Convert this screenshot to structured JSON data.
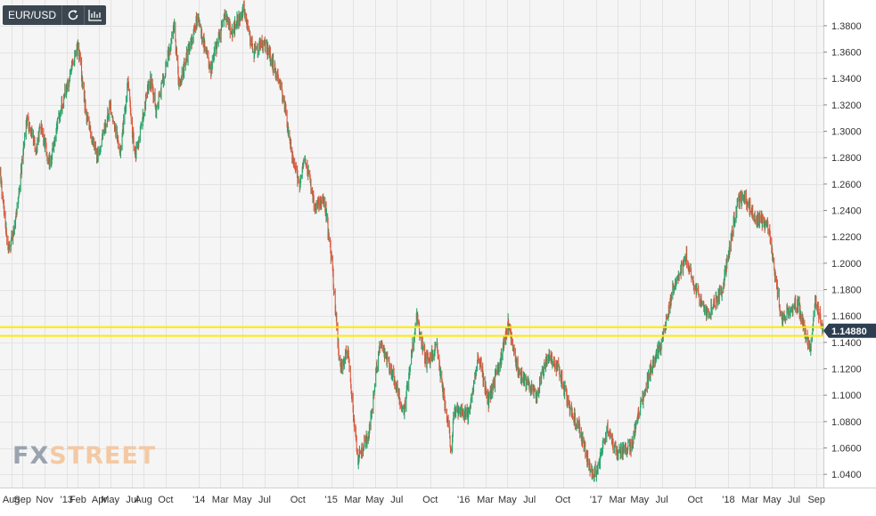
{
  "toolbar": {
    "symbol": "EUR/USD",
    "buttons": [
      {
        "name": "refresh",
        "icon": "refresh-icon"
      },
      {
        "name": "chart-type",
        "icon": "bar-chart-icon"
      }
    ]
  },
  "watermark": {
    "part1": "FX",
    "part2": "STREET"
  },
  "colors": {
    "up": "#26a269",
    "down": "#d9573b",
    "grid": "#e3e3e3",
    "plot_bg": "#f5f5f5",
    "support_line": "#ffea00",
    "price_label_bg": "#2c3e50",
    "axis_text": "#333333"
  },
  "chart_data": {
    "type": "candlestick",
    "title": "EUR/USD",
    "xlabel": "",
    "ylabel": "",
    "x_range": [
      "2012-07-01",
      "2018-09-20"
    ],
    "ylim": [
      1.03,
      1.3995
    ],
    "y_ticks": [
      1.04,
      1.06,
      1.08,
      1.1,
      1.12,
      1.14,
      1.16,
      1.18,
      1.2,
      1.22,
      1.24,
      1.26,
      1.28,
      1.3,
      1.32,
      1.34,
      1.36,
      1.38
    ],
    "y_tick_labels": [
      "1.0400",
      "1.0600",
      "1.0800",
      "1.1000",
      "1.1200",
      "1.1400",
      "1.1600",
      "1.1800",
      "1.2000",
      "1.2200",
      "1.2400",
      "1.2600",
      "1.2800",
      "1.3000",
      "1.3200",
      "1.3400",
      "1.3600",
      "1.3800"
    ],
    "x_ticks": [
      {
        "date": "2012-08-01",
        "label": "Aug"
      },
      {
        "date": "2012-09-01",
        "label": "Sep"
      },
      {
        "date": "2012-11-01",
        "label": "Nov"
      },
      {
        "date": "2013-01-01",
        "label": "'13"
      },
      {
        "date": "2013-02-01",
        "label": "Feb"
      },
      {
        "date": "2013-04-01",
        "label": "Apr"
      },
      {
        "date": "2013-05-01",
        "label": "May"
      },
      {
        "date": "2013-07-01",
        "label": "Jul"
      },
      {
        "date": "2013-08-01",
        "label": "Aug"
      },
      {
        "date": "2013-10-01",
        "label": "Oct"
      },
      {
        "date": "2014-01-01",
        "label": "'14"
      },
      {
        "date": "2014-03-01",
        "label": "Mar"
      },
      {
        "date": "2014-05-01",
        "label": "May"
      },
      {
        "date": "2014-07-01",
        "label": "Jul"
      },
      {
        "date": "2014-10-01",
        "label": "Oct"
      },
      {
        "date": "2015-01-01",
        "label": "'15"
      },
      {
        "date": "2015-03-01",
        "label": "Mar"
      },
      {
        "date": "2015-05-01",
        "label": "May"
      },
      {
        "date": "2015-07-01",
        "label": "Jul"
      },
      {
        "date": "2015-10-01",
        "label": "Oct"
      },
      {
        "date": "2016-01-01",
        "label": "'16"
      },
      {
        "date": "2016-03-01",
        "label": "Mar"
      },
      {
        "date": "2016-05-01",
        "label": "May"
      },
      {
        "date": "2016-07-01",
        "label": "Jul"
      },
      {
        "date": "2016-10-01",
        "label": "Oct"
      },
      {
        "date": "2017-01-01",
        "label": "'17"
      },
      {
        "date": "2017-03-01",
        "label": "Mar"
      },
      {
        "date": "2017-05-01",
        "label": "May"
      },
      {
        "date": "2017-07-01",
        "label": "Jul"
      },
      {
        "date": "2017-10-01",
        "label": "Oct"
      },
      {
        "date": "2018-01-01",
        "label": "'18"
      },
      {
        "date": "2018-03-01",
        "label": "Mar"
      },
      {
        "date": "2018-05-01",
        "label": "May"
      },
      {
        "date": "2018-07-01",
        "label": "Jul"
      },
      {
        "date": "2018-09-01",
        "label": "Sep"
      }
    ],
    "close_path": [
      {
        "date": "2012-07-01",
        "price": 1.268
      },
      {
        "date": "2012-07-24",
        "price": 1.21
      },
      {
        "date": "2012-08-10",
        "price": 1.225
      },
      {
        "date": "2012-09-14",
        "price": 1.31
      },
      {
        "date": "2012-10-10",
        "price": 1.285
      },
      {
        "date": "2012-10-20",
        "price": 1.305
      },
      {
        "date": "2012-11-15",
        "price": 1.275
      },
      {
        "date": "2012-12-18",
        "price": 1.32
      },
      {
        "date": "2013-02-01",
        "price": 1.365
      },
      {
        "date": "2013-02-25",
        "price": 1.31
      },
      {
        "date": "2013-03-27",
        "price": 1.28
      },
      {
        "date": "2013-05-01",
        "price": 1.32
      },
      {
        "date": "2013-05-28",
        "price": 1.285
      },
      {
        "date": "2013-06-19",
        "price": 1.335
      },
      {
        "date": "2013-07-09",
        "price": 1.28
      },
      {
        "date": "2013-08-20",
        "price": 1.34
      },
      {
        "date": "2013-09-05",
        "price": 1.315
      },
      {
        "date": "2013-10-25",
        "price": 1.38
      },
      {
        "date": "2013-11-07",
        "price": 1.335
      },
      {
        "date": "2013-12-27",
        "price": 1.385
      },
      {
        "date": "2014-02-03",
        "price": 1.348
      },
      {
        "date": "2014-03-13",
        "price": 1.39
      },
      {
        "date": "2014-04-01",
        "price": 1.375
      },
      {
        "date": "2014-05-06",
        "price": 1.393
      },
      {
        "date": "2014-05-31",
        "price": 1.36
      },
      {
        "date": "2014-06-30",
        "price": 1.368
      },
      {
        "date": "2014-08-15",
        "price": 1.336
      },
      {
        "date": "2014-09-10",
        "price": 1.29
      },
      {
        "date": "2014-10-05",
        "price": 1.26
      },
      {
        "date": "2014-10-20",
        "price": 1.28
      },
      {
        "date": "2014-11-15",
        "price": 1.245
      },
      {
        "date": "2014-12-15",
        "price": 1.245
      },
      {
        "date": "2015-01-06",
        "price": 1.19
      },
      {
        "date": "2015-01-25",
        "price": 1.12
      },
      {
        "date": "2015-02-15",
        "price": 1.135
      },
      {
        "date": "2015-03-15",
        "price": 1.05
      },
      {
        "date": "2015-04-15",
        "price": 1.07
      },
      {
        "date": "2015-05-15",
        "price": 1.14
      },
      {
        "date": "2015-06-15",
        "price": 1.12
      },
      {
        "date": "2015-07-20",
        "price": 1.085
      },
      {
        "date": "2015-08-24",
        "price": 1.16
      },
      {
        "date": "2015-09-20",
        "price": 1.125
      },
      {
        "date": "2015-10-20",
        "price": 1.135
      },
      {
        "date": "2015-11-30",
        "price": 1.056
      },
      {
        "date": "2015-12-05",
        "price": 1.09
      },
      {
        "date": "2016-01-15",
        "price": 1.085
      },
      {
        "date": "2016-02-11",
        "price": 1.13
      },
      {
        "date": "2016-03-10",
        "price": 1.095
      },
      {
        "date": "2016-04-15",
        "price": 1.13
      },
      {
        "date": "2016-05-03",
        "price": 1.155
      },
      {
        "date": "2016-06-01",
        "price": 1.115
      },
      {
        "date": "2016-06-24",
        "price": 1.11
      },
      {
        "date": "2016-07-20",
        "price": 1.1
      },
      {
        "date": "2016-08-20",
        "price": 1.13
      },
      {
        "date": "2016-09-20",
        "price": 1.12
      },
      {
        "date": "2016-10-20",
        "price": 1.09
      },
      {
        "date": "2016-11-15",
        "price": 1.075
      },
      {
        "date": "2016-12-20",
        "price": 1.04
      },
      {
        "date": "2017-01-05",
        "price": 1.045
      },
      {
        "date": "2017-02-01",
        "price": 1.075
      },
      {
        "date": "2017-03-01",
        "price": 1.055
      },
      {
        "date": "2017-04-10",
        "price": 1.062
      },
      {
        "date": "2017-05-01",
        "price": 1.09
      },
      {
        "date": "2017-06-01",
        "price": 1.12
      },
      {
        "date": "2017-07-01",
        "price": 1.14
      },
      {
        "date": "2017-08-01",
        "price": 1.18
      },
      {
        "date": "2017-09-08",
        "price": 1.205
      },
      {
        "date": "2017-10-01",
        "price": 1.18
      },
      {
        "date": "2017-11-05",
        "price": 1.16
      },
      {
        "date": "2017-12-15",
        "price": 1.18
      },
      {
        "date": "2018-01-25",
        "price": 1.245
      },
      {
        "date": "2018-02-15",
        "price": 1.25
      },
      {
        "date": "2018-03-15",
        "price": 1.235
      },
      {
        "date": "2018-04-20",
        "price": 1.23
      },
      {
        "date": "2018-05-10",
        "price": 1.19
      },
      {
        "date": "2018-05-29",
        "price": 1.155
      },
      {
        "date": "2018-06-15",
        "price": 1.165
      },
      {
        "date": "2018-07-10",
        "price": 1.17
      },
      {
        "date": "2018-08-15",
        "price": 1.134
      },
      {
        "date": "2018-08-28",
        "price": 1.17
      },
      {
        "date": "2018-09-10",
        "price": 1.16
      },
      {
        "date": "2018-09-18",
        "price": 1.1488
      }
    ],
    "support_band": [
      1.145,
      1.1515
    ],
    "last_price": 1.1488,
    "last_price_label": "1.14880",
    "grid": true,
    "legend": "none"
  }
}
